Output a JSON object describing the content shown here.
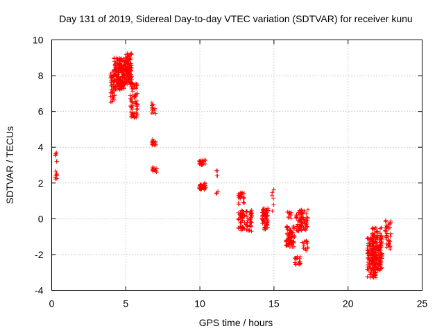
{
  "chart_data": {
    "type": "scatter",
    "title": "Day 131 of 2019, Sidereal Day-to-day VTEC variation (SDTVAR) for receiver kunu",
    "xlabel": "GPS time / hours",
    "ylabel": "SDTVAR / TECUs",
    "xlim": [
      0,
      25
    ],
    "ylim": [
      -4,
      10
    ],
    "x_ticks": [
      0,
      5,
      10,
      15,
      20,
      25
    ],
    "y_ticks": [
      -4,
      -2,
      0,
      2,
      4,
      6,
      8,
      10
    ],
    "x_tick_labels": [
      "0",
      "5",
      "10",
      "15",
      "20",
      "25"
    ],
    "y_tick_labels": [
      "-4",
      "-2",
      "0",
      "2",
      "4",
      "6",
      "8",
      "10"
    ],
    "grid": true,
    "marker": "+",
    "color": "#ff0000",
    "clusters": [
      {
        "x": [
          0.25,
          0.35
        ],
        "y": [
          2.2,
          2.7
        ],
        "n": 8
      },
      {
        "x": [
          0.25,
          0.35
        ],
        "y": [
          3.2,
          3.7
        ],
        "n": 6
      },
      {
        "x": [
          3.95,
          4.25
        ],
        "y": [
          6.5,
          8.2
        ],
        "n": 40
      },
      {
        "x": [
          4.2,
          4.9
        ],
        "y": [
          7.2,
          9.0
        ],
        "n": 160
      },
      {
        "x": [
          4.9,
          5.4
        ],
        "y": [
          7.5,
          9.3
        ],
        "n": 120
      },
      {
        "x": [
          5.3,
          5.8
        ],
        "y": [
          5.6,
          7.8
        ],
        "n": 70
      },
      {
        "x": [
          6.75,
          7.05
        ],
        "y": [
          5.8,
          6.5
        ],
        "n": 14
      },
      {
        "x": [
          6.75,
          7.05
        ],
        "y": [
          4.1,
          4.5
        ],
        "n": 16
      },
      {
        "x": [
          6.75,
          7.1
        ],
        "y": [
          2.6,
          2.9
        ],
        "n": 12
      },
      {
        "x": [
          9.95,
          10.4
        ],
        "y": [
          3.0,
          3.3
        ],
        "n": 25
      },
      {
        "x": [
          9.95,
          10.4
        ],
        "y": [
          1.6,
          2.0
        ],
        "n": 35
      },
      {
        "x": [
          11.1,
          11.3
        ],
        "y": [
          2.3,
          3.0
        ],
        "n": 4
      },
      {
        "x": [
          11.1,
          11.3
        ],
        "y": [
          1.4,
          1.6
        ],
        "n": 3
      },
      {
        "x": [
          12.6,
          13.0
        ],
        "y": [
          0.8,
          1.5
        ],
        "n": 25
      },
      {
        "x": [
          12.6,
          13.5
        ],
        "y": [
          -0.7,
          0.5
        ],
        "n": 90
      },
      {
        "x": [
          14.2,
          14.6
        ],
        "y": [
          -0.6,
          0.6
        ],
        "n": 60
      },
      {
        "x": [
          14.8,
          15.1
        ],
        "y": [
          0.0,
          1.7
        ],
        "n": 6
      },
      {
        "x": [
          15.8,
          16.4
        ],
        "y": [
          -1.6,
          -0.4
        ],
        "n": 70
      },
      {
        "x": [
          15.9,
          16.2
        ],
        "y": [
          0.0,
          0.4
        ],
        "n": 10
      },
      {
        "x": [
          16.4,
          16.8
        ],
        "y": [
          -2.6,
          -2.1
        ],
        "n": 20
      },
      {
        "x": [
          16.5,
          17.3
        ],
        "y": [
          -0.7,
          0.5
        ],
        "n": 80
      },
      {
        "x": [
          16.9,
          17.3
        ],
        "y": [
          -1.8,
          -1.2
        ],
        "n": 15
      },
      {
        "x": [
          21.3,
          21.9
        ],
        "y": [
          -3.3,
          -1.0
        ],
        "n": 120
      },
      {
        "x": [
          21.6,
          22.3
        ],
        "y": [
          -2.9,
          -0.5
        ],
        "n": 150
      },
      {
        "x": [
          22.5,
          22.9
        ],
        "y": [
          -1.8,
          -0.1
        ],
        "n": 40
      }
    ]
  }
}
